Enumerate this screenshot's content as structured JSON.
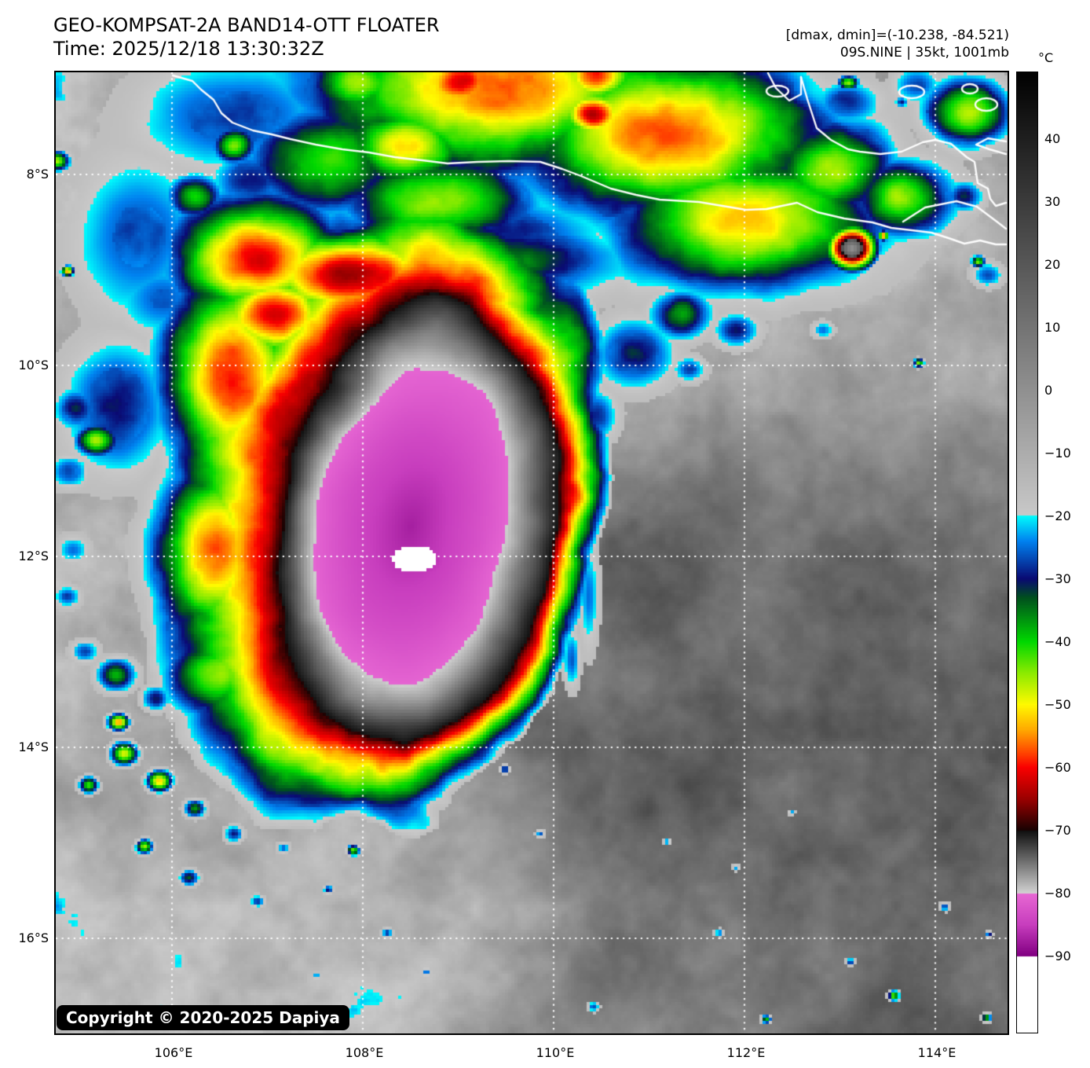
{
  "header": {
    "title": "GEO-KOMPSAT-2A BAND14-OTT FLOATER",
    "time": "Time: 2025/12/18 13:30:32Z",
    "drange": "[dmax, dmin]=(-10.238, -84.521)",
    "storm": "09S.NINE | 35kt, 1001mb"
  },
  "colorbar": {
    "unit": "°C",
    "tick_values": [
      40,
      30,
      20,
      10,
      0,
      -10,
      -20,
      -30,
      -40,
      -50,
      -60,
      -70,
      -80,
      -90
    ],
    "top_value": 50.5,
    "bottom_value": -102.25,
    "palette": [
      [
        50,
        [
          3,
          3,
          3
        ]
      ],
      [
        -19.99,
        [
          201,
          201,
          201
        ]
      ],
      [
        -20,
        [
          0,
          252,
          252
        ]
      ],
      [
        -24,
        [
          0,
          130,
          240
        ]
      ],
      [
        -30,
        [
          10,
          10,
          115
        ]
      ],
      [
        -33,
        [
          0,
          80,
          30
        ]
      ],
      [
        -40,
        [
          0,
          216,
          0
        ]
      ],
      [
        -45,
        [
          140,
          235,
          0
        ]
      ],
      [
        -50,
        [
          255,
          250,
          0
        ]
      ],
      [
        -54,
        [
          255,
          170,
          0
        ]
      ],
      [
        -58,
        [
          255,
          60,
          0
        ]
      ],
      [
        -60,
        [
          250,
          0,
          0
        ]
      ],
      [
        -65,
        [
          155,
          0,
          0
        ]
      ],
      [
        -70,
        [
          25,
          3,
          3
        ]
      ],
      [
        -70.01,
        [
          15,
          15,
          15
        ]
      ],
      [
        -80,
        [
          210,
          210,
          210
        ]
      ],
      [
        -80.01,
        [
          232,
          105,
          212
        ]
      ],
      [
        -85,
        [
          200,
          62,
          190
        ]
      ],
      [
        -90,
        [
          130,
          0,
          130
        ]
      ],
      [
        -90.01,
        [
          255,
          255,
          255
        ]
      ],
      [
        -102.25,
        [
          255,
          255,
          255
        ]
      ]
    ]
  },
  "axes": {
    "lat_labels": [
      "8°S",
      "10°S",
      "12°S",
      "14°S",
      "16°S"
    ],
    "lon_labels": [
      "106°E",
      "108°E",
      "110°E",
      "112°E",
      "114°E"
    ]
  },
  "footer": {
    "copyright": "Copyright © 2020-2025 Dapiya"
  }
}
